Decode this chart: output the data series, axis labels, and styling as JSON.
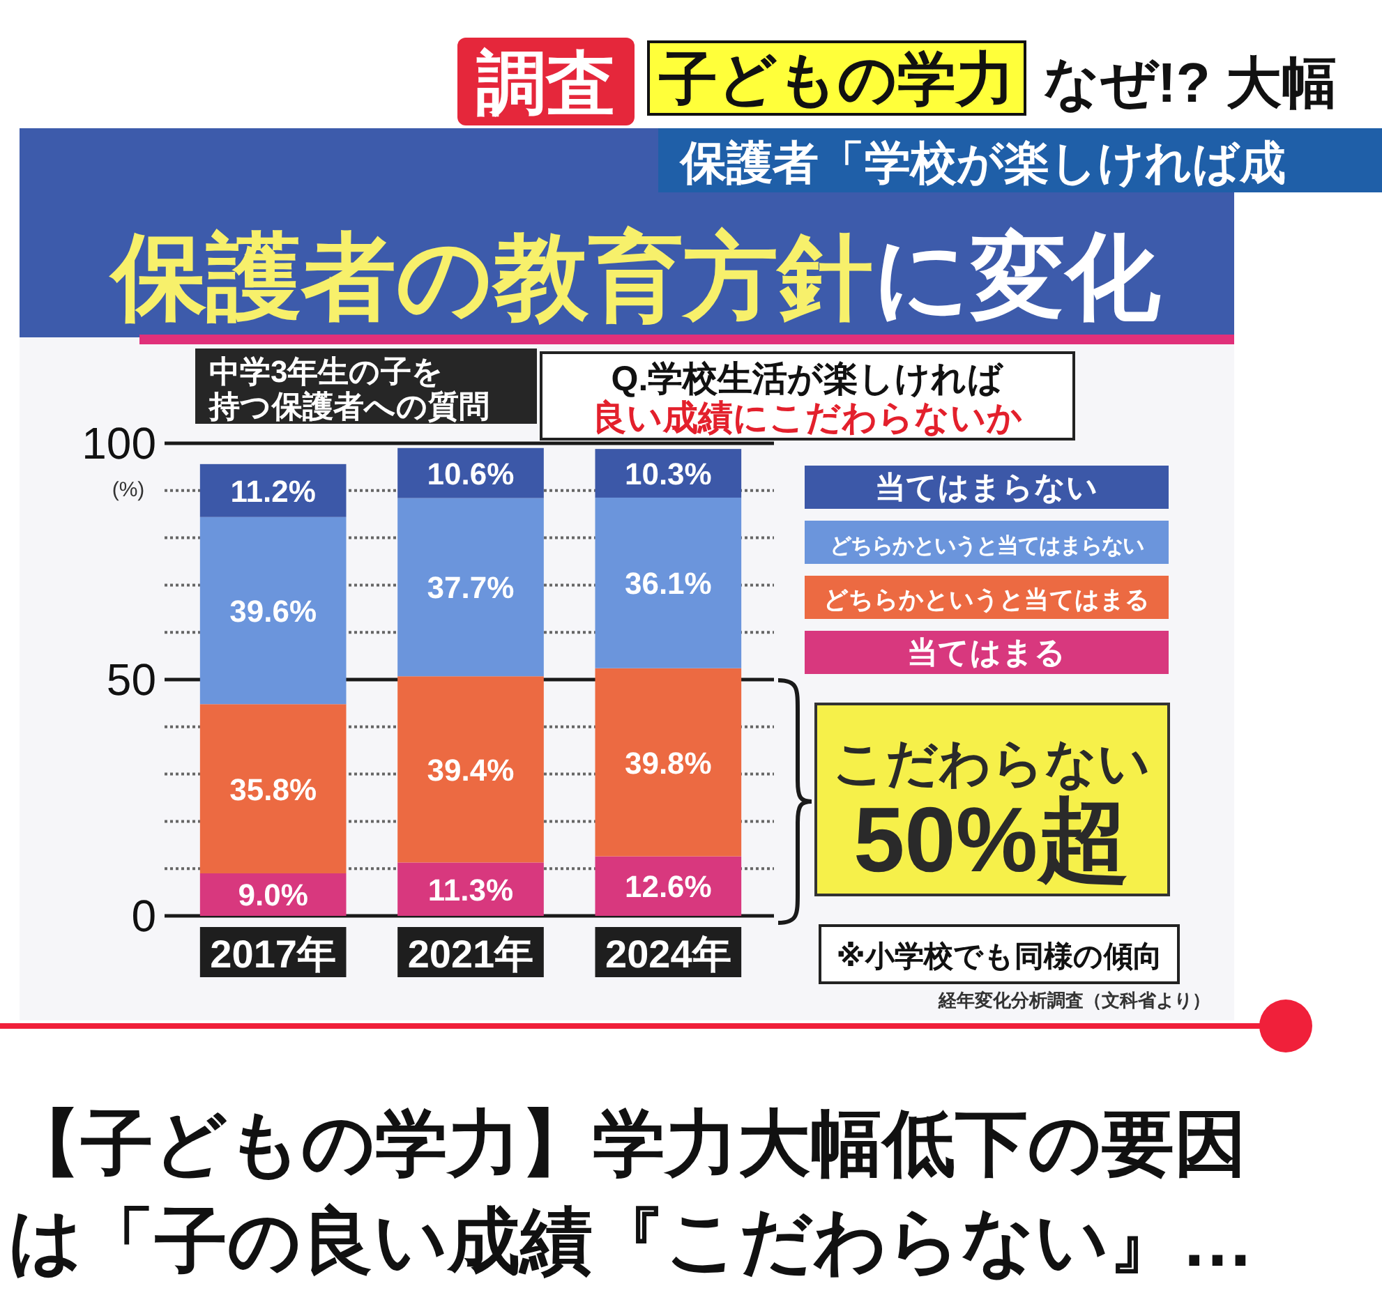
{
  "chart_data": {
    "type": "bar",
    "stacked": true,
    "title": "保護者の教育方針に変化",
    "ylabel": "(%)",
    "categories": [
      "2017年",
      "2021年",
      "2024年"
    ],
    "series": [
      {
        "name": "当てはまる",
        "color": "#d8387e",
        "values": [
          9.0,
          11.3,
          12.6
        ],
        "value_labels": [
          "9.0%",
          "11.3%",
          "12.6%"
        ]
      },
      {
        "name": "どちらかというと当てはまる",
        "color": "#ec6a42",
        "values": [
          35.8,
          39.4,
          39.8
        ],
        "value_labels": [
          "35.8%",
          "39.4%",
          "39.8%"
        ]
      },
      {
        "name": "どちらかというと当てはまらない",
        "color": "#6b95dc",
        "values": [
          39.6,
          37.7,
          36.1
        ],
        "value_labels": [
          "39.6%",
          "37.7%",
          "36.1%"
        ]
      },
      {
        "name": "当てはまらない",
        "color": "#3c58a8",
        "values": [
          11.2,
          10.6,
          10.3
        ],
        "value_labels": [
          "11.2%",
          "10.6%",
          "10.3%"
        ]
      }
    ],
    "ylim": [
      0,
      100
    ],
    "yticks": [
      0,
      {
        "value": 10,
        "label": null
      },
      {
        "value": 20,
        "label": null
      },
      {
        "value": 30,
        "label": null
      },
      {
        "value": 40,
        "label": null
      },
      50,
      {
        "value": 60,
        "label": null
      },
      {
        "value": 70,
        "label": null
      },
      {
        "value": 80,
        "label": null
      },
      {
        "value": 90,
        "label": null
      },
      100
    ],
    "ref_lines": [
      {
        "axis": "y",
        "value": 50,
        "color": "#1a1a1a"
      }
    ],
    "grid": "y",
    "legend": "right",
    "annotations": [
      "調査",
      "子どもの学力",
      "なぜ!? 大幅",
      "保護者「学校が楽しければ成",
      "中学3年生の子を持つ保護者への質問",
      "Q.学校生活が楽しければ良い成績にこだわらないか",
      "こだわらない\n50%超",
      "※小学校でも同様の傾向",
      "経年変化分析調査（文科省より）",
      "【子どもの学力】学力大幅低下の要因は「子の良い成績『こだわらない』…"
    ]
  }
}
